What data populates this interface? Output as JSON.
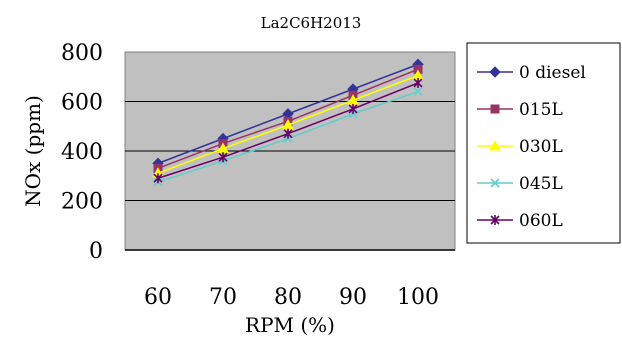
{
  "chart_data": {
    "type": "line",
    "title": "La2C6H2013",
    "xlabel": "RPM (%)",
    "ylabel": "NOx (ppm)",
    "categories": [
      "60",
      "70",
      "80",
      "90",
      "100"
    ],
    "ylim": [
      0,
      800
    ],
    "yticks": [
      "0",
      "200",
      "400",
      "600",
      "800"
    ],
    "grid": "horizontal",
    "plot_background": "#c0c0c0",
    "legend_position": "right",
    "series": [
      {
        "name": "0 diesel",
        "color": "#333399",
        "marker": "diamond",
        "values": [
          350,
          450,
          550,
          650,
          750
        ]
      },
      {
        "name": "015L",
        "color": "#993366",
        "marker": "square",
        "values": [
          330,
          430,
          520,
          625,
          730
        ]
      },
      {
        "name": "030L",
        "color": "#ffff00",
        "marker": "triangle",
        "values": [
          310,
          410,
          505,
          605,
          705
        ]
      },
      {
        "name": "045L",
        "color": "#66cccc",
        "marker": "x",
        "values": [
          275,
          360,
          450,
          550,
          640
        ]
      },
      {
        "name": "060L",
        "color": "#660066",
        "marker": "star",
        "values": [
          290,
          375,
          470,
          570,
          675
        ]
      }
    ]
  }
}
